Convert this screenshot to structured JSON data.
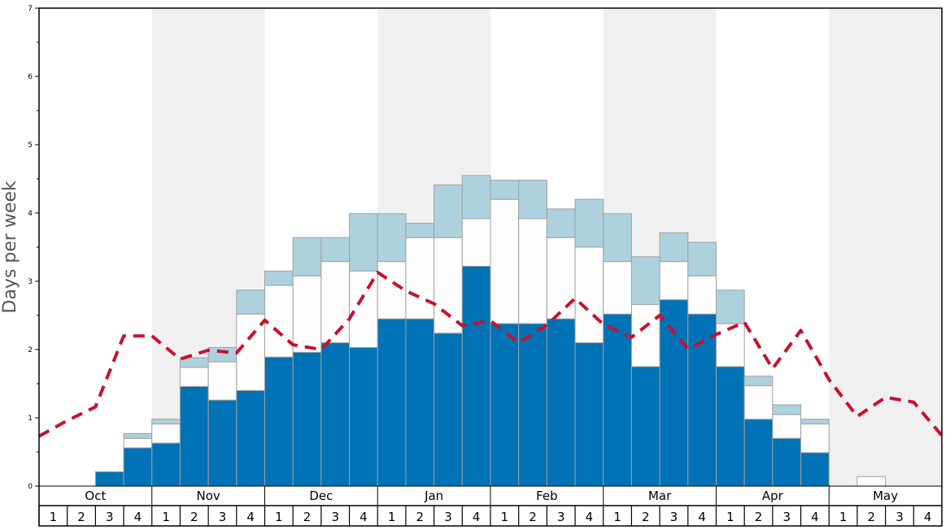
{
  "chart_data": {
    "type": "bar",
    "stacked": true,
    "ylabel": "Days per week",
    "ylim": [
      0,
      7
    ],
    "y_ticks": [
      "0",
      "1",
      "2",
      "3",
      "4",
      "5",
      "6",
      "7"
    ],
    "months": [
      "Oct",
      "Nov",
      "Dec",
      "Jan",
      "Feb",
      "Mar",
      "Apr",
      "May"
    ],
    "weeks_per_month": 4,
    "week_labels": [
      "1",
      "2",
      "3",
      "4"
    ],
    "month_shading": [
      false,
      true,
      false,
      true,
      false,
      true,
      false,
      true
    ],
    "colors": {
      "dark": "#0072b5",
      "white": "#fdfdfd",
      "light": "#aed1de",
      "line": "#c8102e",
      "shade": "#f0f0f0",
      "bar_border": "#a0a0a0"
    },
    "series": [
      {
        "key": "dark",
        "values": [
          0,
          0,
          0.21,
          0.56,
          0.63,
          1.46,
          1.26,
          1.4,
          1.89,
          1.96,
          2.1,
          2.03,
          2.45,
          2.45,
          2.24,
          3.22,
          2.38,
          2.38,
          2.45,
          2.1,
          2.52,
          1.75,
          2.73,
          2.52,
          1.75,
          0.98,
          0.7,
          0.49,
          0,
          0,
          0,
          0
        ]
      },
      {
        "key": "white",
        "values": [
          0,
          0,
          0,
          0.14,
          0.28,
          0.28,
          0.56,
          1.12,
          1.05,
          1.12,
          1.19,
          1.12,
          0.84,
          1.19,
          1.4,
          0.7,
          1.82,
          1.54,
          1.19,
          1.4,
          0.77,
          0.91,
          0.56,
          0.56,
          0.63,
          0.49,
          0.35,
          0.42,
          0,
          0.14,
          0,
          0
        ]
      },
      {
        "key": "light",
        "values": [
          0,
          0,
          0,
          0.07,
          0.07,
          0.14,
          0.21,
          0.35,
          0.21,
          0.56,
          0.35,
          0.84,
          0.7,
          0.21,
          0.77,
          0.63,
          0.28,
          0.56,
          0.42,
          0.7,
          0.7,
          0.7,
          0.42,
          0.49,
          0.49,
          0.14,
          0.14,
          0.07,
          0,
          0,
          0,
          0
        ]
      }
    ],
    "line": {
      "style": "dashed",
      "points": [
        0.73,
        0.96,
        1.16,
        2.2,
        2.2,
        1.86,
        1.99,
        1.95,
        2.43,
        2.07,
        2.0,
        2.45,
        3.13,
        2.86,
        2.67,
        2.35,
        2.42,
        2.1,
        2.36,
        2.75,
        2.37,
        2.18,
        2.5,
        2.01,
        2.22,
        2.4,
        1.72,
        2.28,
        1.56,
        1.02,
        1.3,
        1.23,
        0.74
      ]
    }
  }
}
